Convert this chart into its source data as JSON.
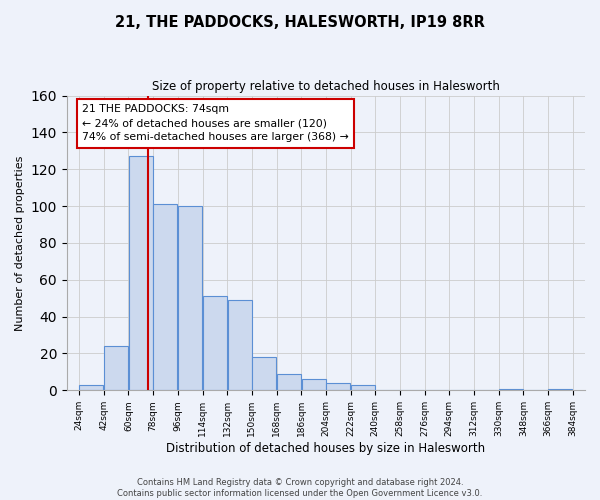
{
  "title": "21, THE PADDOCKS, HALESWORTH, IP19 8RR",
  "subtitle": "Size of property relative to detached houses in Halesworth",
  "xlabel": "Distribution of detached houses by size in Halesworth",
  "ylabel": "Number of detached properties",
  "bin_edges": [
    24,
    42,
    60,
    78,
    96,
    114,
    132,
    150,
    168,
    186,
    204,
    222,
    240,
    258,
    276,
    294,
    312,
    330,
    348,
    366,
    384
  ],
  "bar_heights": [
    3,
    24,
    127,
    101,
    100,
    51,
    49,
    18,
    9,
    6,
    4,
    3,
    0,
    0,
    0,
    0,
    0,
    1,
    0,
    1
  ],
  "bar_color": "#ccd9ee",
  "bar_edge_color": "#5b8fd4",
  "property_size": 74,
  "red_line_color": "#cc0000",
  "annotation_line1": "21 THE PADDOCKS: 74sqm",
  "annotation_line2": "← 24% of detached houses are smaller (120)",
  "annotation_line3": "74% of semi-detached houses are larger (368) →",
  "annotation_box_color": "#ffffff",
  "annotation_box_edge": "#cc0000",
  "ylim": [
    0,
    160
  ],
  "yticks": [
    0,
    20,
    40,
    60,
    80,
    100,
    120,
    140,
    160
  ],
  "grid_color": "#cccccc",
  "background_color": "#eef2fa",
  "footer_line1": "Contains HM Land Registry data © Crown copyright and database right 2024.",
  "footer_line2": "Contains public sector information licensed under the Open Government Licence v3.0."
}
